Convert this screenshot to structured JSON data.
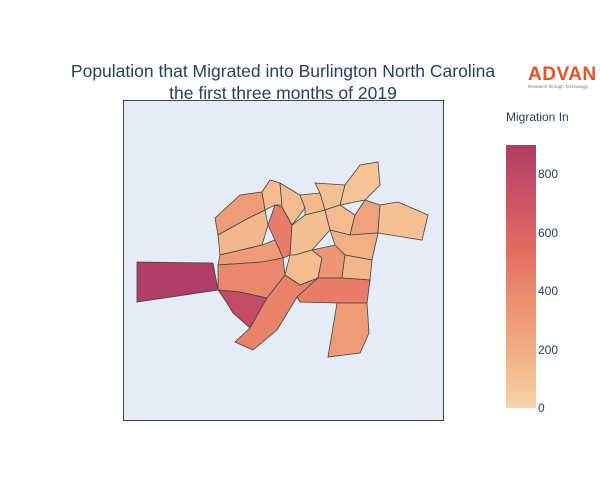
{
  "title_lines": [
    "Population that Migrated into Burlington North Carolina",
    "the first three months of 2019"
  ],
  "logo": {
    "name": "ADVAN",
    "tagline": "Research through Technology",
    "color": "#e8502a"
  },
  "chart_data": {
    "type": "choropleth",
    "title": "Population that Migrated into Burlington North Carolina the first three months of 2019",
    "colorbar": {
      "title": "Migration In",
      "ticks": [
        0,
        200,
        400,
        600,
        800
      ],
      "range": [
        0,
        900
      ]
    },
    "colorscale": [
      "#f7d4a8",
      "#f1b185",
      "#ec9070",
      "#e46c62",
      "#cc5266",
      "#b03d66"
    ],
    "region_values": [
      300,
      150,
      450,
      300,
      120,
      130,
      140,
      100,
      90,
      110,
      130,
      260,
      100,
      180,
      120,
      340,
      150,
      400,
      780,
      430,
      460,
      300,
      900
    ],
    "background": "#e5ecf6"
  }
}
